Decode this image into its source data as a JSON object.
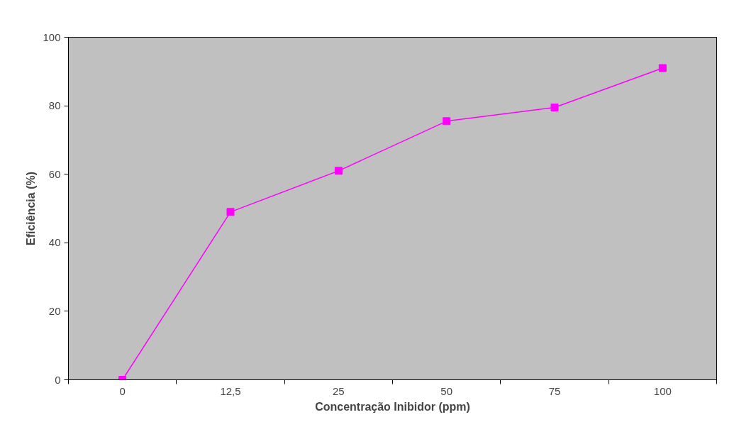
{
  "chart_data": {
    "type": "line",
    "xlabel": "Concentração Inibidor (ppm)",
    "ylabel": "Eficiência (%)",
    "categories": [
      "0",
      "12,5",
      "25",
      "50",
      "75",
      "100"
    ],
    "series": [
      {
        "color": "#ff00ff",
        "values": [
          0,
          49,
          61,
          75.5,
          79.5,
          91
        ]
      }
    ],
    "ylim": [
      0,
      100
    ],
    "yticks": [
      0,
      20,
      40,
      60,
      80,
      100
    ],
    "grid": false,
    "marker": "square",
    "line_style": "solid"
  }
}
